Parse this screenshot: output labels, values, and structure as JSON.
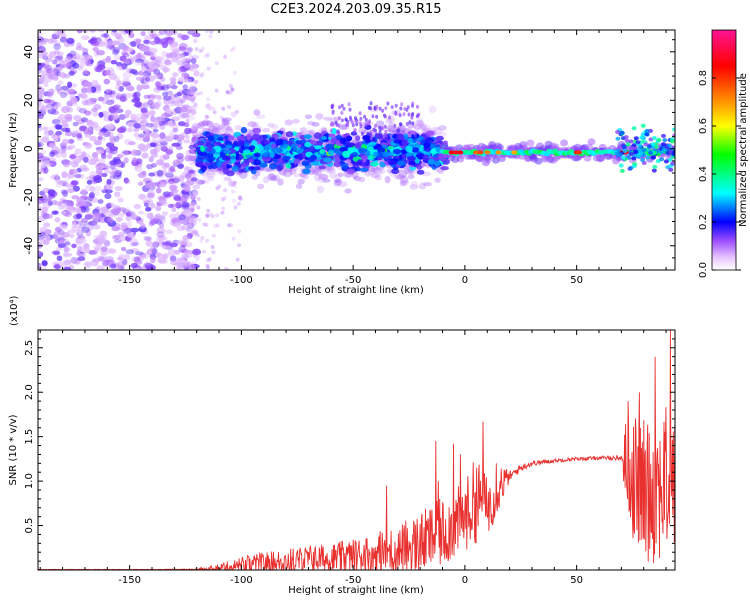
{
  "title": "C2E3.2024.203.09.35.R15",
  "chart_data": [
    {
      "type": "heatmap",
      "title": "C2E3.2024.203.09.35.R15",
      "xlabel": "Height of straight line (km)",
      "ylabel": "Frequency (Hz)",
      "xlim": [
        -191,
        94
      ],
      "ylim": [
        -50,
        49
      ],
      "xticks": [
        -150,
        -100,
        -50,
        0,
        50
      ],
      "yticks": [
        -40,
        -20,
        0,
        20,
        40
      ],
      "colorbar": {
        "label": "Normalized spectral amplitude",
        "range": [
          0,
          1
        ],
        "ticks": [
          0.0,
          0.2,
          0.4,
          0.6,
          0.8
        ],
        "colors": [
          "#ffffff",
          "#e8c8ff",
          "#8a2be2",
          "#0000ff",
          "#00ffff",
          "#00ff00",
          "#ffff00",
          "#ff7f00",
          "#ff0000",
          "#ff1493"
        ]
      },
      "regions": [
        {
          "x": [
            -191,
            -120
          ],
          "frequency": [
            -50,
            49
          ],
          "amplitude": "0.1-0.3"
        },
        {
          "x": [
            -120,
            -10
          ],
          "frequency": [
            -12,
            10
          ],
          "amplitude": "0.2-0.5"
        },
        {
          "x": [
            -10,
            94
          ],
          "frequency": [
            -4,
            2
          ],
          "amplitude": "0.3-1.0"
        }
      ]
    },
    {
      "type": "line",
      "xlabel": "Height of straight line (km)",
      "ylabel": "SNR (10 * v/v)",
      "y_multiplier": "(x10⁴)",
      "xlim": [
        -191,
        94
      ],
      "ylim": [
        0,
        2.7
      ],
      "xticks": [
        -150,
        -100,
        -50,
        0,
        50
      ],
      "yticks": [
        0.5,
        1.0,
        1.5,
        2.0,
        2.5
      ],
      "series": [
        {
          "color": "#e8302e",
          "x": [
            -191,
            -150,
            -120,
            -110,
            -100,
            -90,
            -80,
            -70,
            -60,
            -50,
            -40,
            -30,
            -20,
            -10,
            0,
            5,
            10,
            15,
            20,
            25,
            30,
            40,
            50,
            60,
            70,
            72,
            75,
            80,
            85,
            90,
            94
          ],
          "y_mean": [
            0.0,
            0.0,
            0.005,
            0.02,
            0.05,
            0.08,
            0.1,
            0.12,
            0.13,
            0.15,
            0.18,
            0.22,
            0.3,
            0.42,
            0.6,
            0.8,
            0.7,
            0.95,
            1.05,
            1.15,
            1.2,
            1.23,
            1.25,
            1.26,
            1.26,
            1.2,
            1.05,
            0.9,
            0.95,
            1.0,
            1.0
          ],
          "y_spread": [
            0.005,
            0.005,
            0.01,
            0.05,
            0.1,
            0.12,
            0.14,
            0.16,
            0.17,
            0.2,
            0.25,
            0.3,
            0.35,
            0.4,
            0.4,
            0.5,
            0.35,
            0.3,
            0.06,
            0.04,
            0.03,
            0.02,
            0.02,
            0.02,
            0.03,
            0.5,
            0.7,
            0.8,
            0.9,
            0.85,
            0.8
          ],
          "peaks": [
            [
              -35,
              0.95
            ],
            [
              -13,
              1.45
            ],
            [
              -12,
              1.0
            ],
            [
              -5,
              1.42
            ],
            [
              -2,
              1.3
            ],
            [
              8,
              1.67
            ],
            [
              14,
              1.2
            ],
            [
              73,
              1.9
            ],
            [
              78,
              2.0
            ],
            [
              85,
              2.4
            ],
            [
              92,
              2.7
            ]
          ]
        }
      ]
    }
  ]
}
